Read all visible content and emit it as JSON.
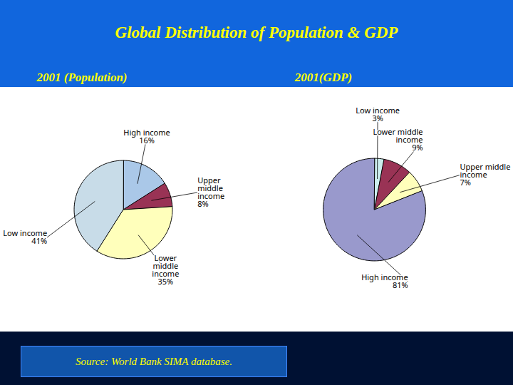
{
  "chart_data": [
    {
      "type": "pie",
      "title": "Global Distribution of Population & GDP",
      "subtitle": "2001 (Population)",
      "categories": [
        "High income",
        "Upper\nmiddle\nincome",
        "Lower\nmiddle\nincome",
        "Low income"
      ],
      "values": [
        16,
        8,
        35,
        41
      ],
      "value_labels": [
        "16%",
        "8%",
        "35%",
        "41%"
      ],
      "data_labels": true,
      "colors": [
        "#aac8e8",
        "#993355",
        "#ffffbb",
        "#c8dce8"
      ],
      "annotations": [
        "Source: World Bank SIMA database."
      ]
    },
    {
      "type": "pie",
      "subtitle": "2001(GDP)",
      "categories": [
        "Low income",
        "Lower middle\nincome",
        "Upper middle\nincome",
        "High income"
      ],
      "values": [
        3,
        9,
        7,
        81
      ],
      "value_labels": [
        "3%",
        "9%",
        "7%",
        "81%"
      ],
      "data_labels": true,
      "colors": [
        "#cceeee",
        "#993355",
        "#ffffbb",
        "#9999cc"
      ]
    }
  ]
}
